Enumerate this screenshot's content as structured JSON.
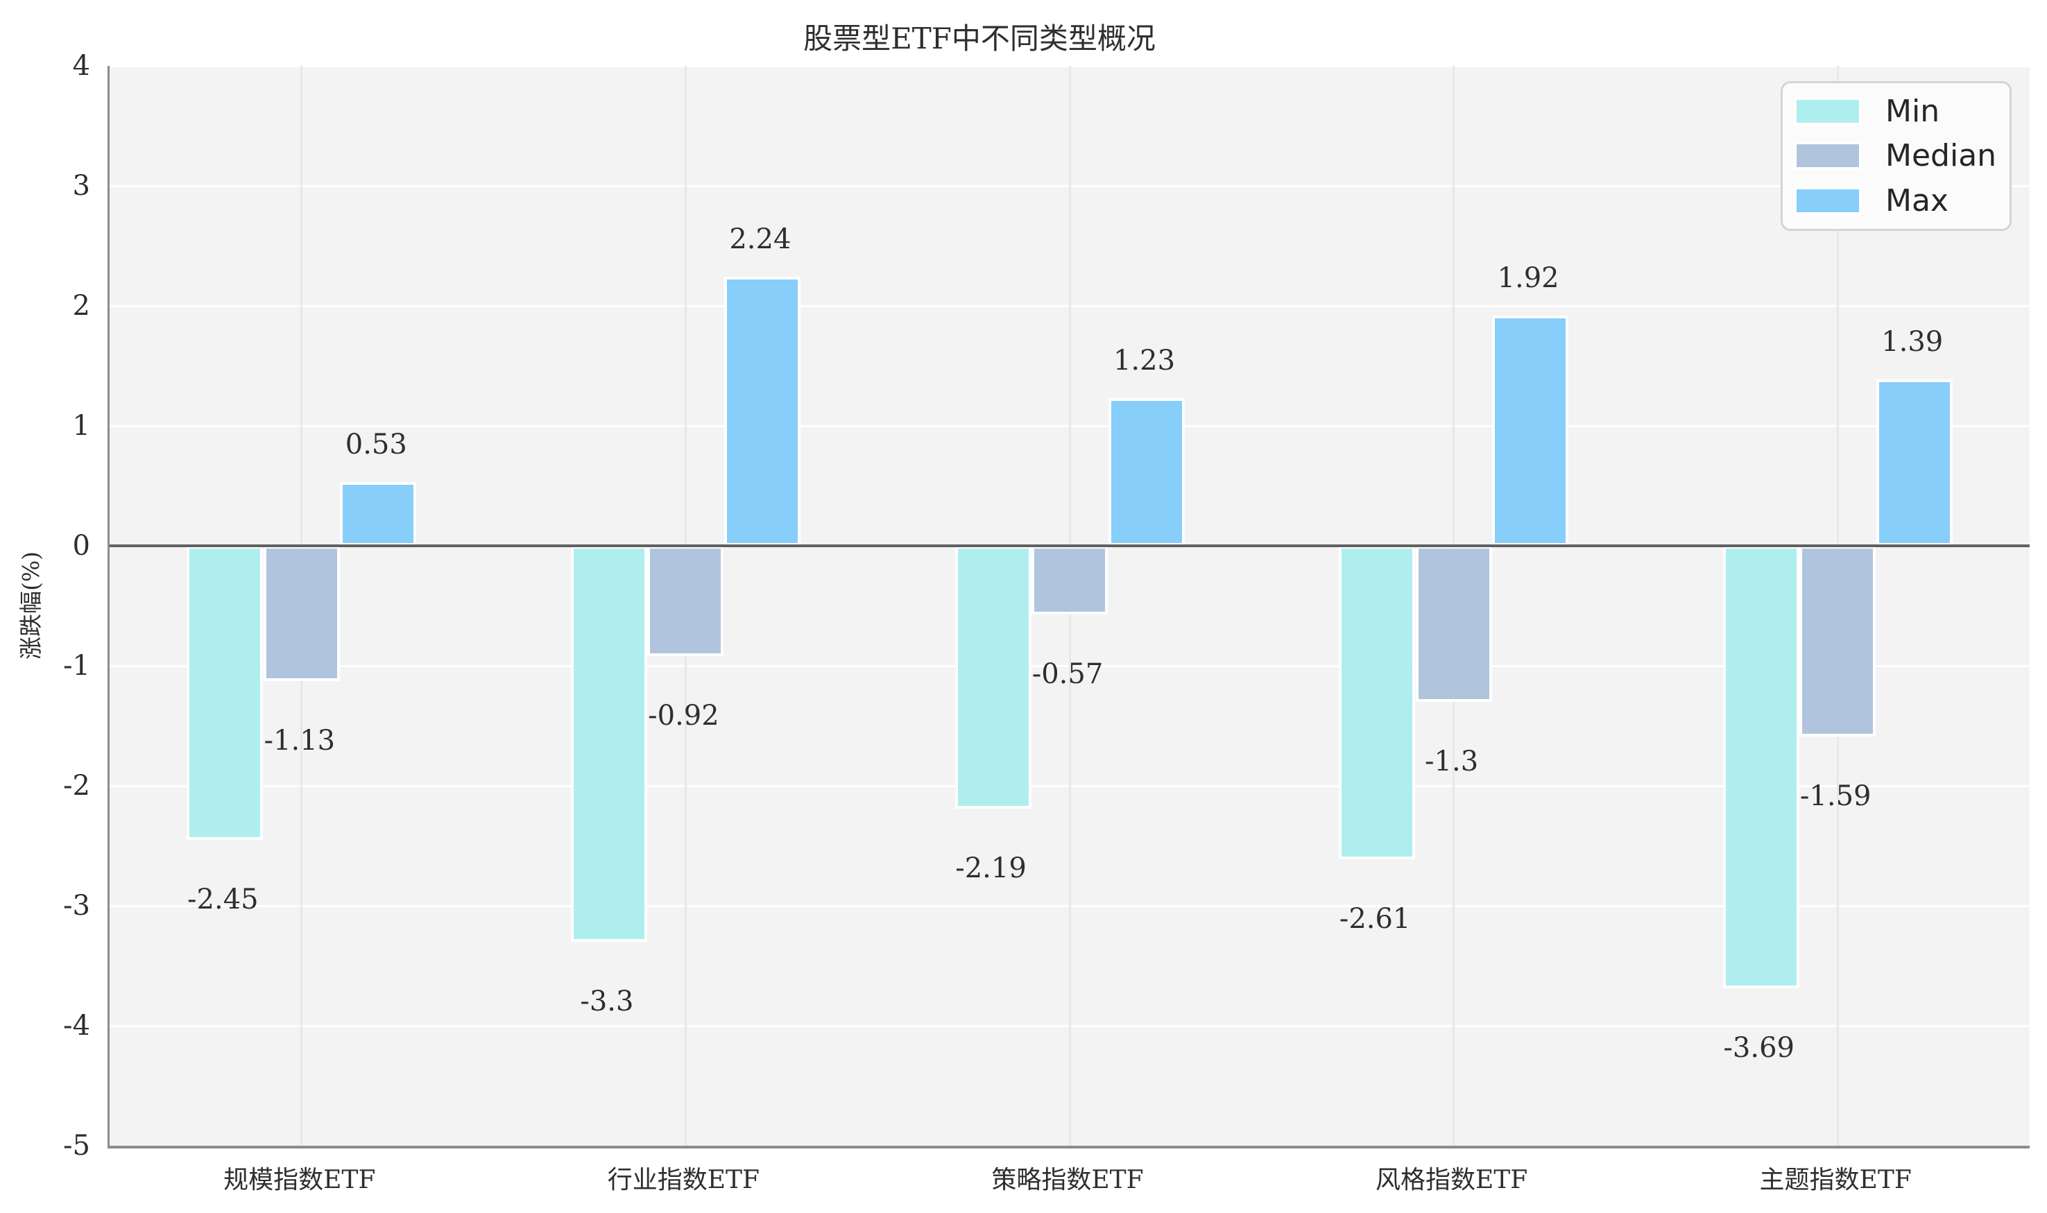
{
  "title": "股票型ETF中不同类型概况",
  "chart_data": {
    "type": "bar",
    "title": "股票型ETF中不同类型概况",
    "xlabel": "",
    "ylabel": "涨跌幅(%)",
    "categories": [
      "规模指数ETF",
      "行业指数ETF",
      "策略指数ETF",
      "风格指数ETF",
      "主题指数ETF"
    ],
    "series": [
      {
        "name": "Min",
        "color": "#AFEEEE",
        "values": [
          -2.45,
          -3.3,
          -2.19,
          -2.61,
          -3.69
        ]
      },
      {
        "name": "Median",
        "color": "#B0C4DE",
        "values": [
          -1.13,
          -0.92,
          -0.57,
          -1.3,
          -1.59
        ]
      },
      {
        "name": "Max",
        "color": "#87CEFA",
        "values": [
          0.53,
          2.24,
          1.23,
          1.92,
          1.39
        ]
      }
    ],
    "ylim": [
      -5,
      4
    ],
    "yticks": [
      4,
      3,
      2,
      1,
      0,
      -1,
      -2,
      -3,
      -4,
      -5
    ],
    "grid": true,
    "legend_position": "upper right",
    "bar_labels_shown": true
  },
  "colors": {
    "plot_background": "#f3f3f3",
    "figure_background": "#ffffff",
    "zero_line": "#616161",
    "spine": "#8c8c8c",
    "grid_horizontal": "#ffffff",
    "grid_vertical": "#e8e8e8",
    "text": "#2e2e2e"
  }
}
